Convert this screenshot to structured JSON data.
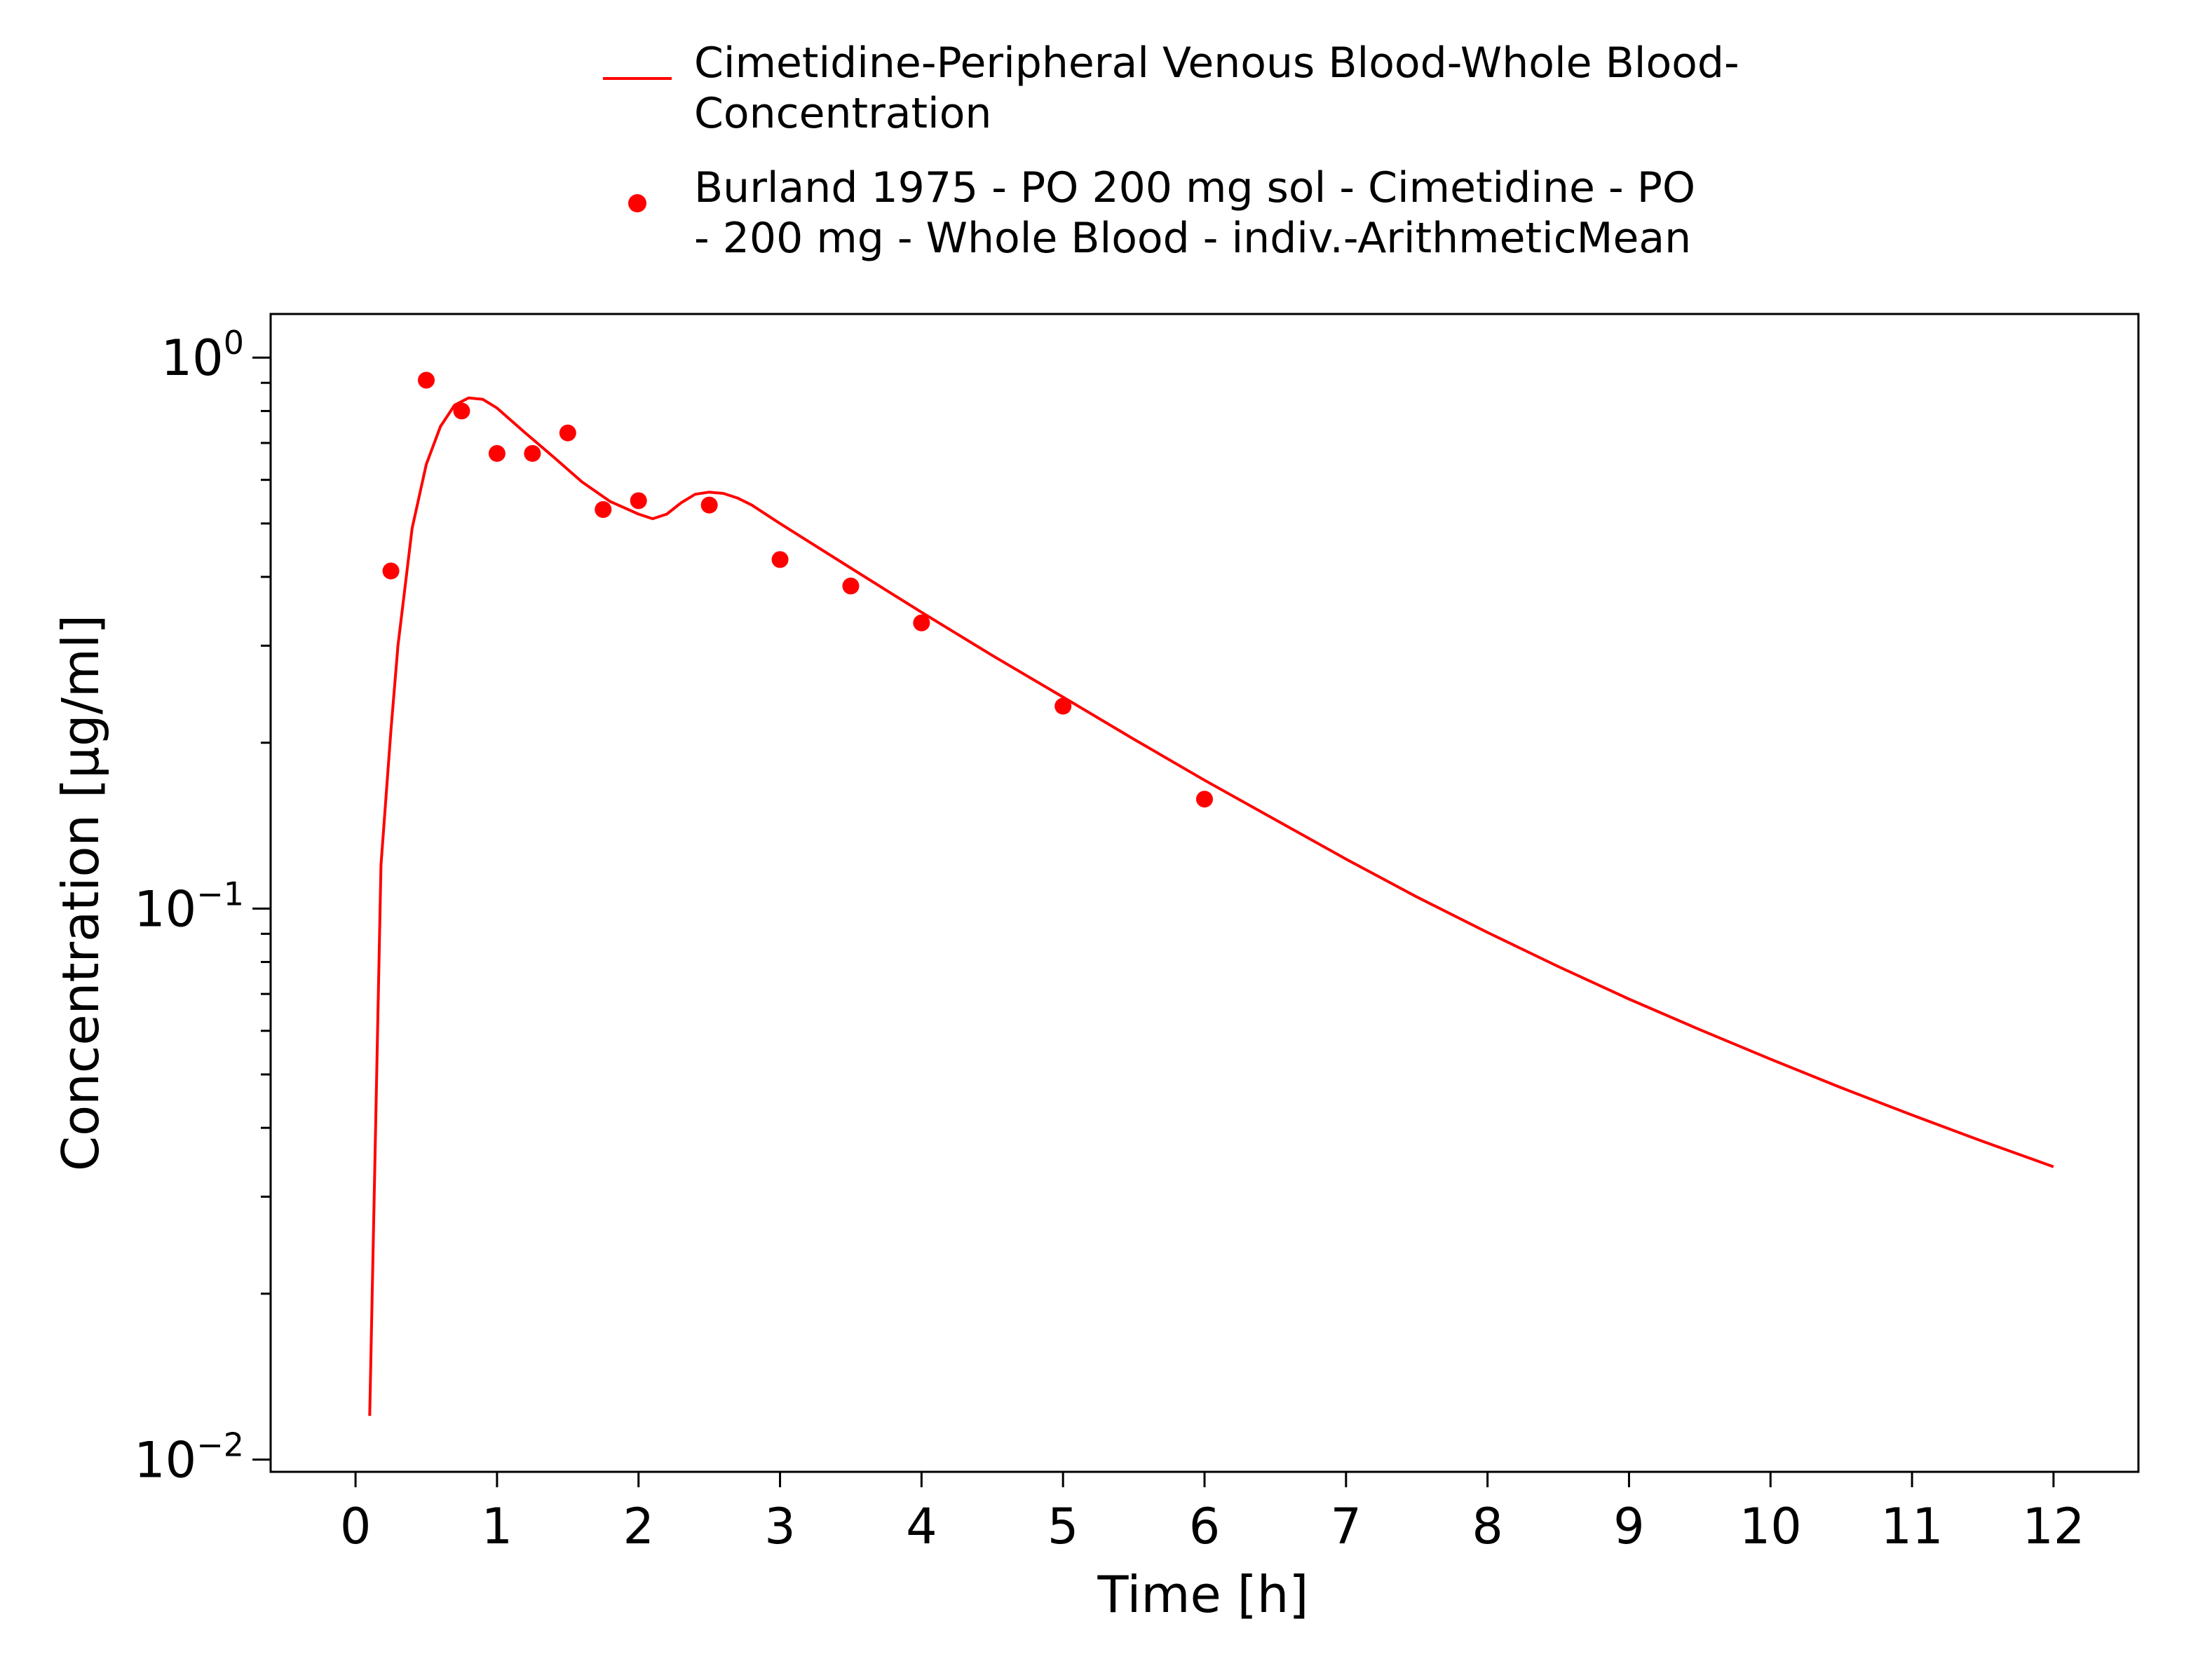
{
  "chart_data": {
    "type": "line",
    "title": "",
    "xlabel": "Time [h]",
    "ylabel": "Concentration [µg/ml]",
    "xlim": [
      -0.6,
      12.6
    ],
    "ylim": [
      0.0095,
      1.2
    ],
    "x_scale": "linear",
    "y_scale": "log",
    "x_ticks": [
      0,
      1,
      2,
      3,
      4,
      5,
      6,
      7,
      8,
      9,
      10,
      11,
      12
    ],
    "x_tick_labels": [
      "0",
      "1",
      "2",
      "3",
      "4",
      "5",
      "6",
      "7",
      "8",
      "9",
      "10",
      "11",
      "12"
    ],
    "y_ticks": [
      {
        "value": 0.01,
        "base": "10",
        "exponent": "−2"
      },
      {
        "value": 0.1,
        "base": "10",
        "exponent": "−1"
      },
      {
        "value": 1,
        "base": "10",
        "exponent": "0"
      }
    ],
    "grid": false,
    "legend_position": "top-center",
    "legend": [
      {
        "series": 0,
        "lines": [
          "Cimetidine-Peripheral Venous Blood-Whole Blood-",
          "Concentration"
        ]
      },
      {
        "series": 1,
        "lines": [
          "Burland 1975 - PO 200 mg sol - Cimetidine - PO",
          "- 200 mg - Whole Blood - indiv.-ArithmeticMean"
        ]
      }
    ],
    "series": [
      {
        "name": "Cimetidine-Peripheral Venous Blood-Whole Blood-Concentration",
        "kind": "line",
        "color": "#ff0000",
        "x": [
          0.1,
          0.18,
          0.25,
          0.3,
          0.4,
          0.5,
          0.6,
          0.7,
          0.8,
          0.9,
          1.0,
          1.2,
          1.4,
          1.6,
          1.8,
          2.0,
          2.1,
          2.2,
          2.3,
          2.4,
          2.5,
          2.6,
          2.7,
          2.8,
          3.0,
          3.5,
          4.0,
          4.5,
          5.0,
          5.5,
          6.0,
          6.5,
          7.0,
          7.5,
          8.0,
          8.5,
          9.0,
          9.5,
          10.0,
          10.5,
          11.0,
          11.5,
          12.0
        ],
        "y": [
          0.012,
          0.12,
          0.21,
          0.3,
          0.49,
          0.64,
          0.75,
          0.82,
          0.845,
          0.84,
          0.81,
          0.73,
          0.66,
          0.595,
          0.548,
          0.52,
          0.51,
          0.52,
          0.545,
          0.565,
          0.57,
          0.567,
          0.556,
          0.54,
          0.5,
          0.415,
          0.345,
          0.288,
          0.242,
          0.203,
          0.171,
          0.145,
          0.123,
          0.105,
          0.0905,
          0.0785,
          0.0685,
          0.0603,
          0.0533,
          0.0473,
          0.0422,
          0.0378,
          0.034
        ]
      },
      {
        "name": "Burland 1975 - PO 200 mg sol - Cimetidine - PO - 200 mg - Whole Blood - indiv.-ArithmeticMean",
        "kind": "scatter",
        "color": "#ff0000",
        "x": [
          0.25,
          0.5,
          0.75,
          1.0,
          1.25,
          1.5,
          1.75,
          2.0,
          2.5,
          3.0,
          3.5,
          4.0,
          5.0,
          6.0
        ],
        "y": [
          0.41,
          0.91,
          0.8,
          0.67,
          0.67,
          0.73,
          0.53,
          0.55,
          0.54,
          0.43,
          0.385,
          0.33,
          0.233,
          0.158
        ]
      }
    ]
  }
}
